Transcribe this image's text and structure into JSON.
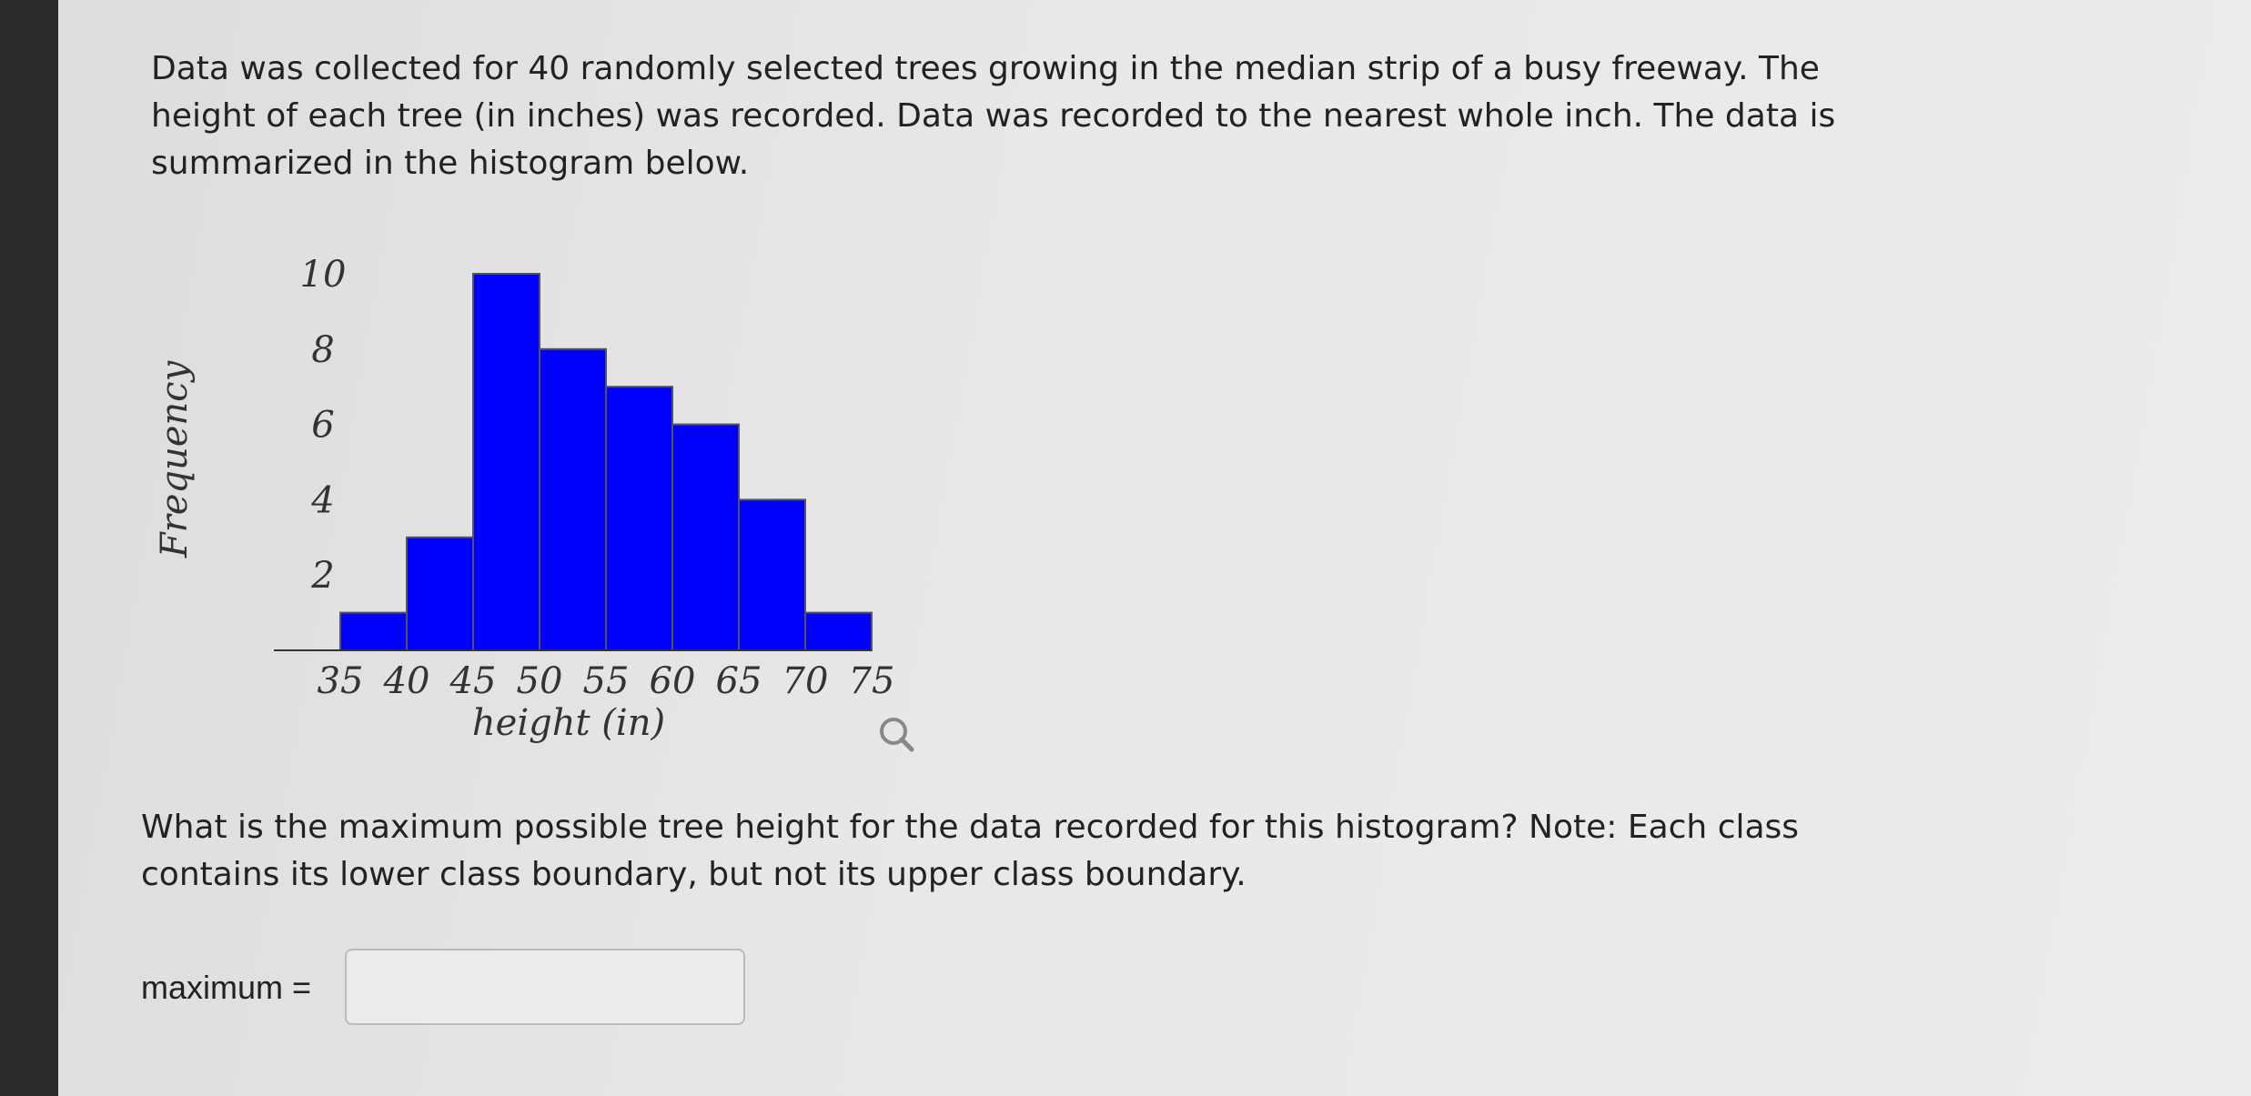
{
  "intro": "Data was collected for 40 randomly selected trees growing in the median strip of a busy freeway. The height of each tree (in inches) was recorded. Data was recorded to the nearest whole inch. The data is summarized in the histogram below.",
  "chart_data": {
    "type": "histogram",
    "xlabel": "height (in)",
    "ylabel": "Frequency",
    "bins": [
      35,
      40,
      45,
      50,
      55,
      60,
      65,
      70,
      75
    ],
    "values": [
      1,
      3,
      10,
      8,
      7,
      6,
      4,
      1
    ],
    "color": "#0000ff",
    "xlim": [
      30,
      75
    ],
    "ylim": [
      0,
      10
    ],
    "xticks": [
      35,
      40,
      45,
      50,
      55,
      60,
      65,
      70,
      75
    ],
    "yticks": [
      2,
      4,
      6,
      8,
      10
    ]
  },
  "question": "What is the maximum possible tree height for the data recorded for this histogram? Note: Each class contains its lower class boundary, but not its upper class boundary.",
  "answer_label": "maximum ="
}
